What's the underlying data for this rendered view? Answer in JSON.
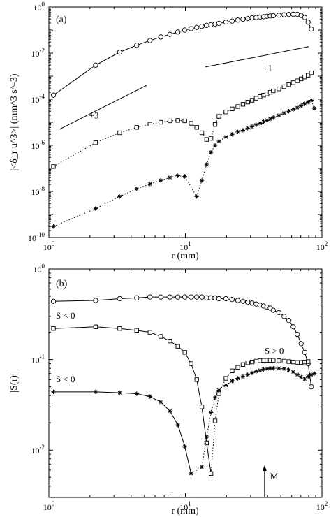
{
  "chart_data": [
    {
      "type": "scatter",
      "panel_label": "(a)",
      "xlabel": "r (mm)",
      "ylabel": "|<δ_r u^3>| (mm^3 s^-3)",
      "xscale": "log",
      "yscale": "log",
      "xlim": [
        1,
        100
      ],
      "ylim": [
        1e-10,
        1
      ],
      "xticks": [
        {
          "v": 1,
          "b": "10",
          "e": "0"
        },
        {
          "v": 10,
          "b": "10",
          "e": "1"
        },
        {
          "v": 100,
          "b": "10",
          "e": "2"
        }
      ],
      "yticks": [
        {
          "v": 1e-10,
          "b": "10",
          "e": "-10"
        },
        {
          "v": 1e-08,
          "b": "10",
          "e": "-8"
        },
        {
          "v": 1e-06,
          "b": "10",
          "e": "-6"
        },
        {
          "v": 0.0001,
          "b": "10",
          "e": "-4"
        },
        {
          "v": 0.01,
          "b": "10",
          "e": "-2"
        },
        {
          "v": 1,
          "b": "10",
          "e": "0"
        }
      ],
      "series": [
        {
          "marker": "circle",
          "line": "solid",
          "points": [
            [
              1.08,
              0.00015
            ],
            [
              2.2,
              0.003
            ],
            [
              3.3,
              0.011
            ],
            [
              4.4,
              0.022
            ],
            [
              5.5,
              0.035
            ],
            [
              6.6,
              0.05
            ],
            [
              7.7,
              0.065
            ],
            [
              8.8,
              0.082
            ],
            [
              9.9,
              0.1
            ],
            [
              11,
              0.115
            ],
            [
              12.1,
              0.13
            ],
            [
              13.2,
              0.145
            ],
            [
              14.3,
              0.16
            ],
            [
              15.4,
              0.17
            ],
            [
              16.5,
              0.18
            ],
            [
              17.6,
              0.195
            ],
            [
              19.8,
              0.22
            ],
            [
              22,
              0.245
            ],
            [
              24.2,
              0.27
            ],
            [
              26.4,
              0.295
            ],
            [
              28.6,
              0.315
            ],
            [
              30.8,
              0.335
            ],
            [
              33,
              0.35
            ],
            [
              35.2,
              0.365
            ],
            [
              37.4,
              0.38
            ],
            [
              39.6,
              0.395
            ],
            [
              41.8,
              0.41
            ],
            [
              44,
              0.42
            ],
            [
              48.4,
              0.44
            ],
            [
              52.8,
              0.46
            ],
            [
              57.2,
              0.475
            ],
            [
              61.6,
              0.485
            ],
            [
              66,
              0.48
            ],
            [
              70.4,
              0.43
            ],
            [
              74.8,
              0.35
            ],
            [
              79.2,
              0.22
            ],
            [
              83.6,
              0.11
            ]
          ]
        },
        {
          "marker": "square",
          "line": "solid-then-dotted",
          "points": [
            [
              1.08,
              1.2e-07
            ],
            [
              2.2,
              1.3e-06
            ],
            [
              3.3,
              3.5e-06
            ],
            [
              4.4,
              6e-06
            ],
            [
              5.5,
              8.2e-06
            ],
            [
              6.6,
              1e-05
            ],
            [
              7.7,
              1.15e-05
            ],
            [
              8.8,
              1.2e-05
            ],
            [
              9.9,
              1.15e-05
            ],
            [
              11,
              9e-06
            ],
            [
              12.1,
              6e-06
            ],
            [
              13.2,
              3.5e-06
            ],
            [
              14.3,
              1.8e-06
            ],
            [
              15.4,
              2e-06
            ],
            [
              16.5,
              8e-06
            ],
            [
              17.6,
              1.8e-05
            ],
            [
              19.8,
              2.8e-05
            ],
            [
              22,
              3.8e-05
            ],
            [
              24.2,
              4.8e-05
            ],
            [
              26.4,
              6e-05
            ],
            [
              28.6,
              7.5e-05
            ],
            [
              30.8,
              9e-05
            ],
            [
              33,
              0.00011
            ],
            [
              35.2,
              0.00013
            ],
            [
              37.4,
              0.00015
            ],
            [
              39.6,
              0.00017
            ],
            [
              41.8,
              0.0002
            ],
            [
              44,
              0.00023
            ],
            [
              48.4,
              0.00028
            ],
            [
              52.8,
              0.00035
            ],
            [
              57.2,
              0.00043
            ],
            [
              61.6,
              0.00052
            ],
            [
              66,
              0.00063
            ],
            [
              70.4,
              0.00076
            ],
            [
              74.8,
              0.00092
            ],
            [
              79.2,
              0.0011
            ],
            [
              83.6,
              0.0014
            ]
          ]
        },
        {
          "marker": "star",
          "line": "solid-then-dotted",
          "points": [
            [
              1.08,
              3e-10
            ],
            [
              2.2,
              1.8e-09
            ],
            [
              3.3,
              6e-09
            ],
            [
              4.4,
              1.3e-08
            ],
            [
              5.5,
              2.1e-08
            ],
            [
              6.6,
              3e-08
            ],
            [
              7.7,
              4e-08
            ],
            [
              8.8,
              4.8e-08
            ],
            [
              9.9,
              4.5e-08
            ],
            [
              12.1,
              6e-09
            ],
            [
              13.2,
              3e-08
            ],
            [
              14.3,
              1.5e-07
            ],
            [
              15.4,
              5e-07
            ],
            [
              16.5,
              1e-06
            ],
            [
              17.6,
              1.5e-06
            ],
            [
              19.8,
              2.3e-06
            ],
            [
              22,
              3e-06
            ],
            [
              24.2,
              3.8e-06
            ],
            [
              26.4,
              4.5e-06
            ],
            [
              28.6,
              5.5e-06
            ],
            [
              30.8,
              6.5e-06
            ],
            [
              33,
              7.7e-06
            ],
            [
              35.2,
              9e-06
            ],
            [
              37.4,
              1.05e-05
            ],
            [
              39.6,
              1.2e-05
            ],
            [
              41.8,
              1.4e-05
            ],
            [
              44,
              1.6e-05
            ],
            [
              48.4,
              2e-05
            ],
            [
              52.8,
              2.5e-05
            ],
            [
              57.2,
              3e-05
            ],
            [
              61.6,
              3.6e-05
            ],
            [
              66,
              4.3e-05
            ],
            [
              70.4,
              5.2e-05
            ],
            [
              74.8,
              6.3e-05
            ],
            [
              79.2,
              7.5e-05
            ],
            [
              83.6,
              9e-05
            ],
            [
              88,
              4e-05
            ]
          ]
        }
      ],
      "reference_lines": [
        {
          "label": "+3",
          "x": [
            1.2,
            5.2
          ],
          "y": [
            5e-06,
            0.0004
          ]
        },
        {
          "label": "+1",
          "x": [
            14,
            80
          ],
          "y": [
            0.0025,
            0.019
          ]
        }
      ]
    },
    {
      "type": "scatter",
      "panel_label": "(b)",
      "xlabel": "r (mm)",
      "ylabel": "|S(r)|",
      "xscale": "log",
      "yscale": "log",
      "xlim": [
        1,
        100
      ],
      "ylim": [
        0.003,
        1
      ],
      "xticks": [
        {
          "v": 1,
          "b": "10",
          "e": "0"
        },
        {
          "v": 10,
          "b": "10",
          "e": "1"
        },
        {
          "v": 100,
          "b": "10",
          "e": "2"
        }
      ],
      "yticks": [
        {
          "v": 0.01,
          "b": "10",
          "e": "-2"
        },
        {
          "v": 0.1,
          "b": "10",
          "e": "-1"
        },
        {
          "v": 1,
          "b": "10",
          "e": "0"
        }
      ],
      "series": [
        {
          "marker": "circle",
          "line": "solid",
          "points": [
            [
              1.08,
              0.44
            ],
            [
              2.2,
              0.45
            ],
            [
              3.3,
              0.47
            ],
            [
              4.4,
              0.48
            ],
            [
              5.5,
              0.49
            ],
            [
              6.6,
              0.49
            ],
            [
              7.7,
              0.49
            ],
            [
              8.8,
              0.49
            ],
            [
              9.9,
              0.49
            ],
            [
              11,
              0.49
            ],
            [
              12.1,
              0.49
            ],
            [
              13.2,
              0.49
            ],
            [
              14.3,
              0.48
            ],
            [
              15.4,
              0.48
            ],
            [
              16.5,
              0.48
            ],
            [
              17.6,
              0.47
            ],
            [
              19.8,
              0.47
            ],
            [
              22,
              0.46
            ],
            [
              24.2,
              0.45
            ],
            [
              26.4,
              0.44
            ],
            [
              28.6,
              0.43
            ],
            [
              30.8,
              0.42
            ],
            [
              33,
              0.41
            ],
            [
              35.2,
              0.4
            ],
            [
              37.4,
              0.39
            ],
            [
              39.6,
              0.38
            ],
            [
              41.8,
              0.37
            ],
            [
              44,
              0.35
            ],
            [
              48.4,
              0.33
            ],
            [
              52.8,
              0.3
            ],
            [
              57.2,
              0.27
            ],
            [
              61.6,
              0.23
            ],
            [
              66,
              0.19
            ],
            [
              70.4,
              0.15
            ],
            [
              74.8,
              0.12
            ],
            [
              79.2,
              0.09
            ],
            [
              83.6,
              0.05
            ]
          ]
        },
        {
          "marker": "square",
          "line": "solid-then-dotted",
          "annotation_left": "S < 0",
          "annotation_right": "S > 0",
          "points": [
            [
              1.08,
              0.22
            ],
            [
              2.2,
              0.23
            ],
            [
              3.3,
              0.22
            ],
            [
              4.4,
              0.21
            ],
            [
              5.5,
              0.2
            ],
            [
              6.6,
              0.18
            ],
            [
              7.7,
              0.16
            ],
            [
              8.8,
              0.14
            ],
            [
              9.9,
              0.12
            ],
            [
              11,
              0.09
            ],
            [
              12.1,
              0.06
            ],
            [
              13.2,
              0.03
            ],
            [
              14.3,
              0.012
            ],
            [
              15.4,
              0.0055
            ],
            [
              16.5,
              0.021
            ],
            [
              17.6,
              0.042
            ],
            [
              19.8,
              0.062
            ],
            [
              22,
              0.075
            ],
            [
              24.2,
              0.082
            ],
            [
              26.4,
              0.088
            ],
            [
              28.6,
              0.092
            ],
            [
              30.8,
              0.094
            ],
            [
              33,
              0.096
            ],
            [
              35.2,
              0.097
            ],
            [
              37.4,
              0.098
            ],
            [
              39.6,
              0.098
            ],
            [
              41.8,
              0.098
            ],
            [
              44,
              0.098
            ],
            [
              48.4,
              0.097
            ],
            [
              52.8,
              0.096
            ],
            [
              57.2,
              0.095
            ],
            [
              61.6,
              0.094
            ],
            [
              66,
              0.093
            ],
            [
              70.4,
              0.093
            ],
            [
              74.8,
              0.094
            ],
            [
              79.2,
              0.095
            ]
          ]
        },
        {
          "marker": "star",
          "line": "solid-then-dotted",
          "annotation_left": "S < 0",
          "points": [
            [
              1.08,
              0.044
            ],
            [
              2.2,
              0.044
            ],
            [
              3.3,
              0.043
            ],
            [
              4.4,
              0.042
            ],
            [
              5.5,
              0.039
            ],
            [
              6.6,
              0.034
            ],
            [
              7.7,
              0.027
            ],
            [
              8.8,
              0.019
            ],
            [
              9.9,
              0.011
            ],
            [
              11,
              0.0055
            ],
            [
              13.2,
              0.0065
            ],
            [
              14.3,
              0.014
            ],
            [
              15.4,
              0.026
            ],
            [
              16.5,
              0.038
            ],
            [
              17.6,
              0.046
            ],
            [
              19.8,
              0.052
            ],
            [
              22,
              0.058
            ],
            [
              24.2,
              0.062
            ],
            [
              26.4,
              0.065
            ],
            [
              28.6,
              0.068
            ],
            [
              30.8,
              0.071
            ],
            [
              33,
              0.074
            ],
            [
              35.2,
              0.076
            ],
            [
              37.4,
              0.078
            ],
            [
              39.6,
              0.079
            ],
            [
              41.8,
              0.08
            ],
            [
              44,
              0.08
            ],
            [
              48.4,
              0.08
            ],
            [
              52.8,
              0.079
            ],
            [
              57.2,
              0.077
            ],
            [
              61.6,
              0.073
            ],
            [
              66,
              0.068
            ],
            [
              70.4,
              0.064
            ],
            [
              74.8,
              0.061
            ],
            [
              79.2,
              0.065
            ],
            [
              83.6,
              0.068
            ],
            [
              88,
              0.07
            ]
          ]
        }
      ],
      "marker_label": {
        "text": "M",
        "x": 38
      }
    }
  ]
}
